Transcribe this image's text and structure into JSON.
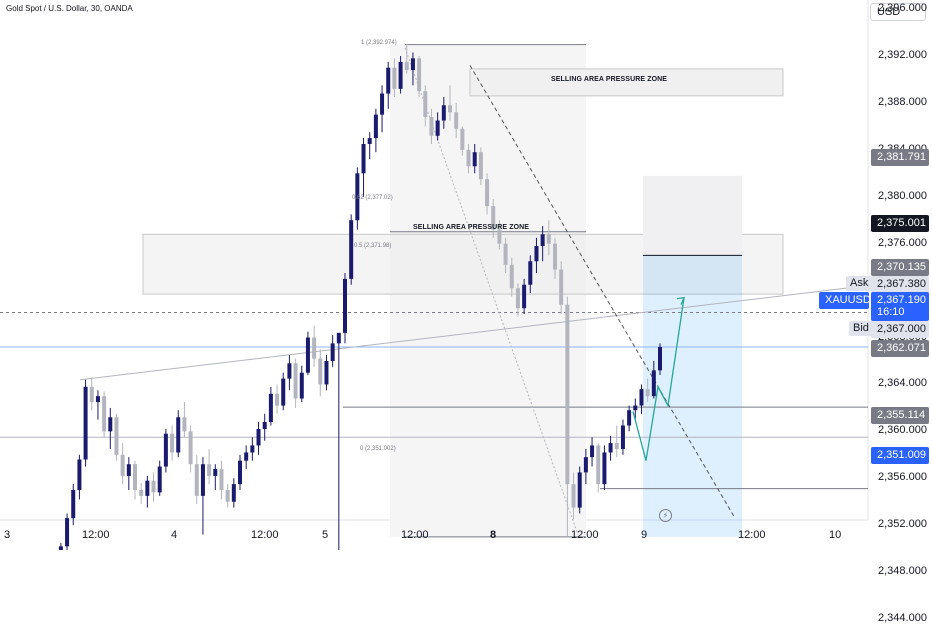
{
  "header": {
    "title": "Gold Spot / U.S. Dollar, 30, OANDA",
    "currency": "USD"
  },
  "zones": [
    {
      "label": "SELLING AREA PRESSURE ZONE"
    },
    {
      "label": "SELLING AREA PRESSURE ZONE"
    }
  ],
  "fib_labels": [
    "1 (2,392.974)",
    "0.62 (2,377.02)",
    "0.5 (2,371.98)",
    "0 (2,351.002)"
  ],
  "price_tags": {
    "p1": "2,381.791",
    "p2": "2,375.001",
    "p3": "2,370.135",
    "ask": "2,367.380",
    "symbol": "XAUUSD",
    "current": "2,367.190",
    "countdown": "16:10",
    "bid": "2,367.000",
    "p4": "2,362.071",
    "p5": "2,355.114",
    "p6": "2,351.009",
    "ask_label": "Ask",
    "bid_label": "Bid"
  },
  "colors": {
    "bull": "#1a1a6e",
    "bear": "#b2b5be",
    "projection": "#2196f3",
    "path": "#26a69a",
    "current_tag": "#2962ff",
    "dark_tag": "#131722",
    "gray_tag": "#787b86"
  },
  "chart_data": {
    "type": "candlestick",
    "title": "Gold Spot / U.S. Dollar, 30, OANDA",
    "y_ticks": [
      "2,396.000",
      "2,392.000",
      "2,388.000",
      "2,384.000",
      "2,380.000",
      "2,376.000",
      "2,372.000",
      "2,368.000",
      "2,364.000",
      "2,360.000",
      "2,356.000",
      "2,352.000",
      "2,348.000",
      "2,344.000"
    ],
    "y_tick_values": [
      2396,
      2392,
      2388,
      2384,
      2380,
      2376,
      2372,
      2368,
      2364,
      2360,
      2356,
      2352,
      2348,
      2344
    ],
    "ylim": [
      2344,
      2397
    ],
    "x_ticks": [
      "3",
      "12:00",
      "4",
      "12:00",
      "5",
      "12:00",
      "8",
      "12:00",
      "9",
      "12:00",
      "10"
    ],
    "annotations": {
      "fib_high": 2392.974,
      "fib_062": 2377.02,
      "fib_05": 2371.98,
      "fib_low": 2351.002,
      "horizontal_levels": [
        2392.974,
        2370.135,
        2367.19,
        2362.071,
        2359.5,
        2355.114,
        2347.5
      ],
      "zone_upper": [
        2388.6,
        2390.9
      ],
      "zone_lower": [
        2371.7,
        2376.8
      ],
      "projection_box": [
        2351.009,
        2375.001
      ],
      "projection_gray": [
        2375.001,
        2381.791
      ],
      "trendline_points": [
        [
          80,
          2364.4
        ],
        [
          865,
          2372.4
        ]
      ],
      "descending_line": [
        [
          470,
          2391.2
        ],
        [
          735,
          2352.6
        ]
      ],
      "fib_diagonal": [
        [
          405,
          2392.7
        ],
        [
          578,
          2351.2
        ]
      ],
      "forecast_path": [
        [
          633,
          2361.7
        ],
        [
          646,
          2357.5
        ],
        [
          658,
          2363.8
        ],
        [
          668,
          2362.2
        ],
        [
          684,
          2371.4
        ]
      ]
    },
    "candles": [
      [
        2344.0,
        2345.5,
        2343.5,
        2345.0
      ],
      [
        2345.0,
        2346.0,
        2344.0,
        2344.5
      ],
      [
        2344.5,
        2347.5,
        2343.8,
        2347.2
      ],
      [
        2347.2,
        2348.0,
        2346.5,
        2346.8
      ],
      [
        2346.8,
        2349.0,
        2345.5,
        2348.8
      ],
      [
        2348.8,
        2350.5,
        2348.0,
        2350.2
      ],
      [
        2350.2,
        2353.0,
        2349.5,
        2352.6
      ],
      [
        2352.6,
        2355.5,
        2352.0,
        2355.0
      ],
      [
        2355.0,
        2358.0,
        2354.2,
        2357.6
      ],
      [
        2357.6,
        2364.4,
        2357.0,
        2363.8
      ],
      [
        2363.8,
        2364.6,
        2361.8,
        2362.5
      ],
      [
        2362.5,
        2363.5,
        2361.0,
        2363.0
      ],
      [
        2363.0,
        2363.4,
        2359.5,
        2360.0
      ],
      [
        2360.0,
        2362.0,
        2358.5,
        2361.2
      ],
      [
        2361.2,
        2361.5,
        2357.5,
        2358.0
      ],
      [
        2358.0,
        2359.0,
        2355.5,
        2356.2
      ],
      [
        2356.2,
        2357.8,
        2355.0,
        2357.2
      ],
      [
        2357.2,
        2357.5,
        2354.2,
        2355.0
      ],
      [
        2355.0,
        2355.6,
        2353.8,
        2354.5
      ],
      [
        2354.5,
        2356.2,
        2353.5,
        2355.8
      ],
      [
        2355.8,
        2356.5,
        2354.0,
        2354.8
      ],
      [
        2354.8,
        2357.5,
        2354.5,
        2357.0
      ],
      [
        2357.0,
        2360.2,
        2356.5,
        2359.8
      ],
      [
        2359.8,
        2360.5,
        2357.5,
        2358.2
      ],
      [
        2358.2,
        2361.8,
        2357.8,
        2361.2
      ],
      [
        2361.2,
        2362.5,
        2359.5,
        2360.0
      ],
      [
        2360.0,
        2360.5,
        2356.5,
        2357.2
      ],
      [
        2357.2,
        2358.0,
        2353.8,
        2354.5
      ],
      [
        2354.5,
        2357.8,
        2351.2,
        2357.2
      ],
      [
        2357.2,
        2358.5,
        2355.5,
        2356.2
      ],
      [
        2356.2,
        2357.2,
        2355.0,
        2356.8
      ],
      [
        2356.8,
        2357.5,
        2354.2,
        2355.0
      ],
      [
        2355.0,
        2355.5,
        2353.5,
        2354.0
      ],
      [
        2354.0,
        2356.0,
        2353.5,
        2355.5
      ],
      [
        2355.5,
        2358.0,
        2355.0,
        2357.5
      ],
      [
        2357.5,
        2358.8,
        2356.8,
        2358.2
      ],
      [
        2358.2,
        2359.5,
        2357.5,
        2358.8
      ],
      [
        2358.8,
        2360.8,
        2358.0,
        2360.2
      ],
      [
        2360.2,
        2361.5,
        2359.2,
        2360.8
      ],
      [
        2360.8,
        2363.8,
        2360.5,
        2363.2
      ],
      [
        2363.2,
        2364.0,
        2361.5,
        2362.2
      ],
      [
        2362.2,
        2365.0,
        2361.8,
        2364.5
      ],
      [
        2364.5,
        2366.5,
        2363.5,
        2365.8
      ],
      [
        2365.8,
        2366.2,
        2362.0,
        2362.8
      ],
      [
        2362.8,
        2365.6,
        2362.5,
        2365.0
      ],
      [
        2365.0,
        2368.5,
        2364.8,
        2368.0
      ],
      [
        2368.0,
        2369.0,
        2365.5,
        2366.2
      ],
      [
        2366.2,
        2367.0,
        2363.0,
        2364.0
      ],
      [
        2364.0,
        2366.5,
        2363.5,
        2366.0
      ],
      [
        2366.0,
        2368.2,
        2365.5,
        2367.5
      ],
      [
        2367.5,
        2368.0,
        2349.0,
        2368.4
      ],
      [
        2368.4,
        2373.5,
        2367.5,
        2373.0
      ],
      [
        2373.0,
        2378.5,
        2372.5,
        2378.0
      ],
      [
        2378.0,
        2382.5,
        2377.2,
        2382.0
      ],
      [
        2382.0,
        2385.0,
        2380.0,
        2384.5
      ],
      [
        2384.5,
        2385.5,
        2383.2,
        2385.0
      ],
      [
        2385.0,
        2387.5,
        2383.8,
        2387.0
      ],
      [
        2387.0,
        2389.5,
        2385.5,
        2388.8
      ],
      [
        2388.8,
        2391.5,
        2387.5,
        2391.0
      ],
      [
        2391.0,
        2391.8,
        2388.5,
        2389.2
      ],
      [
        2389.2,
        2392.0,
        2388.8,
        2391.5
      ],
      [
        2391.5,
        2393.0,
        2390.5,
        2390.8
      ],
      [
        2390.8,
        2392.3,
        2389.5,
        2391.8
      ],
      [
        2391.8,
        2392.0,
        2388.5,
        2389.0
      ],
      [
        2389.0,
        2389.5,
        2386.0,
        2386.8
      ],
      [
        2386.8,
        2387.5,
        2384.5,
        2385.2
      ],
      [
        2385.2,
        2387.2,
        2384.8,
        2386.5
      ],
      [
        2386.5,
        2388.5,
        2385.8,
        2387.8
      ],
      [
        2387.8,
        2389.5,
        2386.5,
        2387.2
      ],
      [
        2387.2,
        2388.0,
        2385.0,
        2385.8
      ],
      [
        2385.8,
        2386.0,
        2383.5,
        2384.0
      ],
      [
        2384.0,
        2384.5,
        2382.0,
        2382.6
      ],
      [
        2382.6,
        2384.5,
        2382.0,
        2383.8
      ],
      [
        2383.8,
        2384.2,
        2381.0,
        2381.5
      ],
      [
        2381.5,
        2382.0,
        2378.5,
        2379.2
      ],
      [
        2379.2,
        2379.8,
        2376.5,
        2377.2
      ],
      [
        2377.2,
        2378.0,
        2375.5,
        2376.0
      ],
      [
        2376.0,
        2376.5,
        2373.5,
        2374.2
      ],
      [
        2374.2,
        2374.8,
        2371.5,
        2372.2
      ],
      [
        2372.2,
        2372.6,
        2369.8,
        2370.5
      ],
      [
        2370.5,
        2373.0,
        2370.0,
        2372.5
      ],
      [
        2372.5,
        2375.0,
        2371.8,
        2374.5
      ],
      [
        2374.5,
        2376.5,
        2373.5,
        2375.8
      ],
      [
        2375.8,
        2377.5,
        2374.5,
        2376.8
      ],
      [
        2376.8,
        2378.0,
        2375.0,
        2376.0
      ],
      [
        2376.0,
        2376.5,
        2373.0,
        2373.8
      ],
      [
        2373.8,
        2374.5,
        2370.0,
        2370.8
      ],
      [
        2370.8,
        2371.5,
        2351.0,
        2355.5
      ],
      [
        2355.5,
        2356.5,
        2352.5,
        2353.5
      ],
      [
        2353.5,
        2357.0,
        2353.0,
        2356.5
      ],
      [
        2356.5,
        2358.5,
        2355.5,
        2357.8
      ],
      [
        2357.8,
        2359.5,
        2357.0,
        2358.8
      ],
      [
        2358.8,
        2359.0,
        2354.8,
        2355.5
      ],
      [
        2355.5,
        2358.8,
        2355.0,
        2358.2
      ],
      [
        2358.2,
        2359.6,
        2357.5,
        2359.0
      ],
      [
        2359.0,
        2360.5,
        2357.8,
        2358.5
      ],
      [
        2358.5,
        2361.0,
        2358.0,
        2360.5
      ],
      [
        2360.5,
        2362.2,
        2360.0,
        2361.8
      ],
      [
        2361.8,
        2362.8,
        2361.0,
        2362.2
      ],
      [
        2362.2,
        2364.0,
        2361.5,
        2363.6
      ],
      [
        2363.6,
        2364.5,
        2362.5,
        2363.0
      ],
      [
        2363.0,
        2366.0,
        2362.8,
        2365.2
      ],
      [
        2365.2,
        2367.5,
        2364.8,
        2367.19
      ]
    ]
  }
}
